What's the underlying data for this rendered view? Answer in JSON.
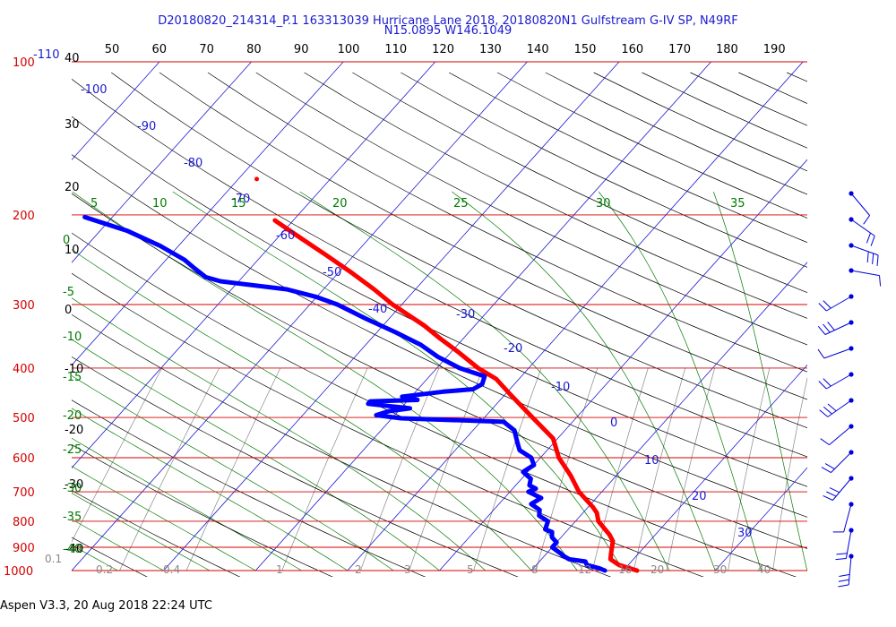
{
  "title": {
    "line1": "D20180820_214314_P.1 163313039 Hurricane Lane 2018, 20180820N1 Gulfstream G-IV SP, N49RF",
    "line2": "N15.0895 W146.1049"
  },
  "footer": "Aspen V3.3, 20 Aug 2018  22:24 UTC",
  "colors": {
    "isobar": "#d40000",
    "dry_adiabat": "#000000",
    "isotherm": "#1a1ad0",
    "moist_adiabat": "#007a00",
    "mixing_ratio": "#888888",
    "temperature": "#ff0000",
    "dewpoint": "#0000ff"
  },
  "chart_data": {
    "type": "line",
    "chart_kind": "Skew-T log-P diagram",
    "pressure_labels": [
      "100",
      "200",
      "300",
      "400",
      "500",
      "600",
      "700",
      "800",
      "900",
      "1000"
    ],
    "pressure_label_prefix": "-110",
    "top_theta_labels": [
      "50",
      "60",
      "70",
      "80",
      "90",
      "100",
      "110",
      "120",
      "130",
      "140",
      "150",
      "160",
      "170",
      "180",
      "190"
    ],
    "left_axis_labels": [
      "40",
      "30",
      "20",
      "10",
      "0",
      "-10",
      "-20",
      "-30",
      "-40"
    ],
    "isotherm_labels": [
      "-100",
      "-90",
      "-80",
      "-70",
      "-60",
      "-50",
      "-40",
      "-30",
      "-20",
      "-10",
      "0",
      "10",
      "20",
      "30"
    ],
    "moist_adiabat_top_labels": [
      "5",
      "10",
      "15",
      "20",
      "25",
      "30",
      "35"
    ],
    "moist_adiabat_left_labels": [
      "0",
      "-5",
      "-10",
      "-15",
      "-20",
      "-25",
      "-30",
      "-35",
      "-40"
    ],
    "mixing_ratio_labels": [
      "0.1",
      "0.2",
      "0.4",
      "1",
      "2",
      "3",
      "5",
      "8",
      "12",
      "16",
      "20",
      "30",
      "40"
    ],
    "temp_range_at_1000hPa": [
      -40,
      40
    ],
    "series": [
      {
        "key": "temperature",
        "points": [
          [
            1000,
            21.5
          ],
          [
            990,
            20.5
          ],
          [
            975,
            19
          ],
          [
            950,
            17.5
          ],
          [
            925,
            17
          ],
          [
            900,
            16.5
          ],
          [
            875,
            16
          ],
          [
            850,
            15
          ],
          [
            800,
            12.5
          ],
          [
            770,
            11.5
          ],
          [
            750,
            10.5
          ],
          [
            700,
            7.5
          ],
          [
            650,
            5
          ],
          [
            600,
            2
          ],
          [
            550,
            -0.5
          ],
          [
            500,
            -4.8
          ],
          [
            450,
            -9.5
          ],
          [
            420,
            -12.5
          ],
          [
            400,
            -15.5
          ],
          [
            370,
            -19.5
          ],
          [
            350,
            -22.5
          ],
          [
            330,
            -25.5
          ],
          [
            300,
            -31
          ],
          [
            280,
            -34.5
          ],
          [
            260,
            -38.5
          ],
          [
            240,
            -43
          ],
          [
            220,
            -48
          ],
          [
            205,
            -52
          ]
        ]
      },
      {
        "key": "dewpoint",
        "points": [
          [
            1000,
            18
          ],
          [
            990,
            17.2
          ],
          [
            975,
            15.5
          ],
          [
            960,
            15
          ],
          [
            950,
            13
          ],
          [
            935,
            12
          ],
          [
            925,
            11.5
          ],
          [
            900,
            10
          ],
          [
            880,
            10
          ],
          [
            860,
            9
          ],
          [
            840,
            8.5
          ],
          [
            830,
            7.5
          ],
          [
            800,
            7
          ],
          [
            780,
            5.5
          ],
          [
            760,
            5
          ],
          [
            740,
            3.5
          ],
          [
            720,
            4
          ],
          [
            700,
            2
          ],
          [
            690,
            2.5
          ],
          [
            680,
            1.5
          ],
          [
            660,
            1
          ],
          [
            640,
            -0.5
          ],
          [
            620,
            0
          ],
          [
            600,
            -1
          ],
          [
            580,
            -3
          ],
          [
            560,
            -4
          ],
          [
            530,
            -5.5
          ],
          [
            510,
            -7.5
          ],
          [
            502,
            -19
          ],
          [
            495,
            -22
          ],
          [
            486,
            -21
          ],
          [
            480,
            -19
          ],
          [
            470,
            -24
          ],
          [
            465,
            -24
          ],
          [
            462,
            -19
          ],
          [
            455,
            -21
          ],
          [
            445,
            -17
          ],
          [
            440,
            -14
          ],
          [
            430,
            -13.5
          ],
          [
            415,
            -14
          ],
          [
            400,
            -17.5
          ],
          [
            380,
            -21
          ],
          [
            360,
            -24
          ],
          [
            340,
            -28
          ],
          [
            320,
            -32.5
          ],
          [
            300,
            -37
          ],
          [
            290,
            -40
          ],
          [
            280,
            -44
          ],
          [
            270,
            -52
          ],
          [
            265,
            -54
          ],
          [
            255,
            -56
          ],
          [
            245,
            -58
          ],
          [
            230,
            -62
          ],
          [
            215,
            -67
          ],
          [
            202,
            -73
          ]
        ]
      }
    ],
    "outlier_temperature_point": {
      "pressure": 170,
      "temp": -58
    },
    "wind_barb_count": 15
  }
}
